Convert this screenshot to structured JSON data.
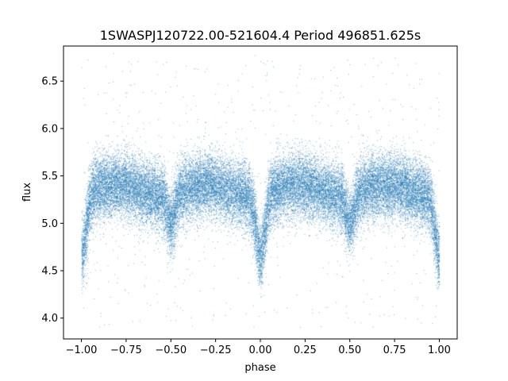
{
  "chart_data": {
    "type": "scatter",
    "title": "1SWASPJ120722.00-521604.4 Period 496851.625s",
    "xlabel": "phase",
    "ylabel": "flux",
    "xlim": [
      -1.1,
      1.1
    ],
    "ylim": [
      3.78,
      6.87
    ],
    "xticks": [
      -1.0,
      -0.75,
      -0.5,
      -0.25,
      0.0,
      0.25,
      0.5,
      0.75,
      1.0
    ],
    "xtick_labels": [
      "−1.00",
      "−0.75",
      "−0.50",
      "−0.25",
      "0.00",
      "0.25",
      "0.50",
      "0.75",
      "1.00"
    ],
    "yticks": [
      4.0,
      4.5,
      5.0,
      5.5,
      6.0,
      6.5
    ],
    "ytick_labels": [
      "4.0",
      "4.5",
      "5.0",
      "5.5",
      "6.0",
      "6.5"
    ],
    "grid": false,
    "legend": "none",
    "color": "#1f77b4",
    "series": [
      {
        "phase_range": [
          -1.0,
          1.0
        ],
        "baseline_flux": 5.35,
        "scatter_sigma": 0.17,
        "primary_eclipse": {
          "phase": [
            -1.0,
            0.0,
            1.0
          ],
          "min_flux": 4.7,
          "half_width": 0.035
        },
        "secondary_eclipse": {
          "phase": [
            -0.5,
            0.5
          ],
          "min_flux": 5.05,
          "half_width": 0.03
        },
        "outlier_range": [
          3.9,
          6.8
        ],
        "approx_points": 34000
      }
    ]
  }
}
